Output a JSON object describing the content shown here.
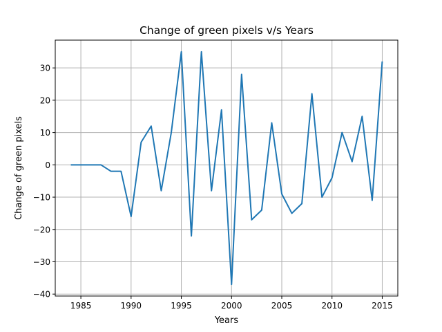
{
  "chart_data": {
    "type": "line",
    "title": "Change of green pixels v/s Years",
    "xlabel": "Years",
    "ylabel": "Change of green pixels",
    "xlim": [
      1982.45,
      2016.55
    ],
    "ylim": [
      -40.6,
      38.6
    ],
    "xticks": [
      1985,
      1990,
      1995,
      2000,
      2005,
      2010,
      2015
    ],
    "yticks": [
      -40,
      -30,
      -20,
      -10,
      0,
      10,
      20,
      30
    ],
    "grid": true,
    "line_color": "#1f77b4",
    "series": [
      {
        "x": [
          1984,
          1985,
          1986,
          1987,
          1988,
          1989,
          1990,
          1991,
          1992,
          1993,
          1994,
          1995,
          1996,
          1997,
          1998,
          1999,
          2000,
          2001,
          2002,
          2003,
          2004,
          2005,
          2006,
          2007,
          2008,
          2009,
          2010,
          2011,
          2012,
          2013,
          2014,
          2015
        ],
        "y": [
          0,
          0,
          0,
          0,
          -2,
          -2,
          -16,
          7,
          12,
          -8,
          10,
          35,
          -22,
          35,
          -8,
          17,
          -37,
          28,
          -17,
          -14,
          13,
          -9,
          -15,
          -12,
          22,
          -10,
          -4,
          10,
          1,
          15,
          -11,
          32
        ]
      }
    ]
  }
}
